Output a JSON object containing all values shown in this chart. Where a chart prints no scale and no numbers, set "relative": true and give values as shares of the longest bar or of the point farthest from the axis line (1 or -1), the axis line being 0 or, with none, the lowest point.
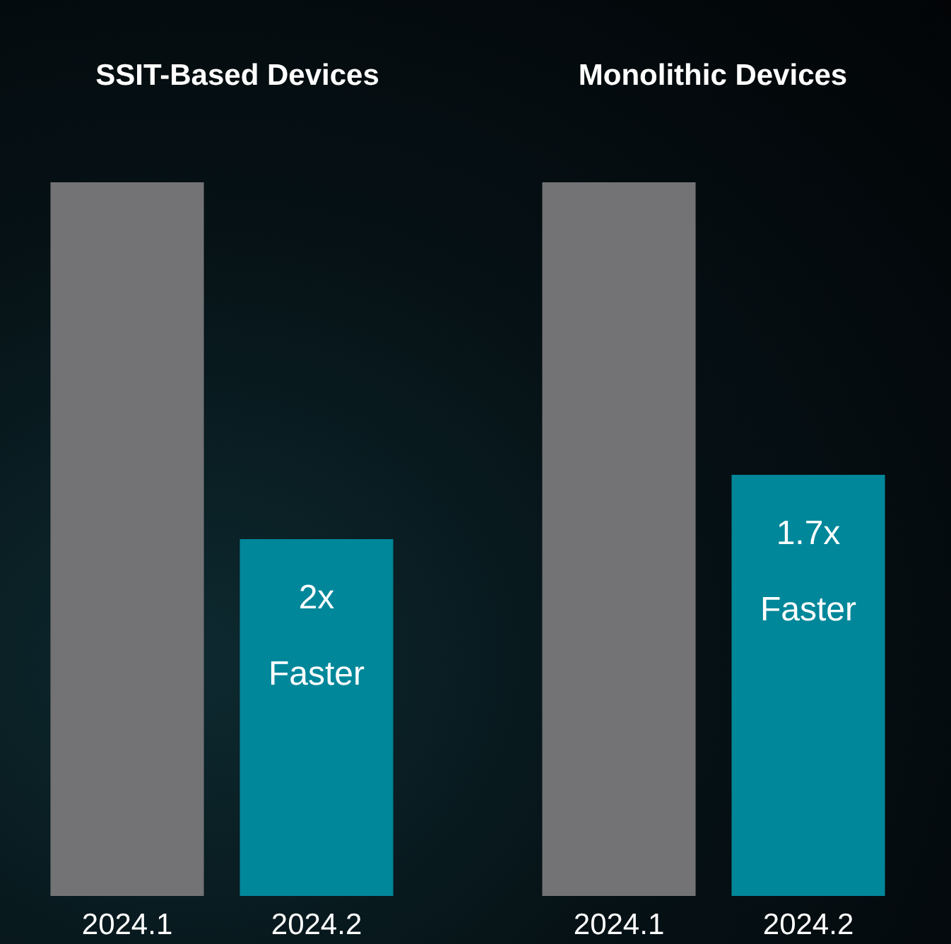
{
  "chart_data": [
    {
      "type": "bar",
      "title": "SSIT-Based Devices",
      "categories": [
        "2024.1",
        "2024.2"
      ],
      "values": [
        1,
        0.5
      ],
      "colors": [
        "#737376",
        "#00879a"
      ],
      "relative": true,
      "annotations": [
        {
          "text": "2x Faster",
          "x": "2024.2",
          "y": 0.5
        }
      ]
    },
    {
      "type": "bar",
      "title": "Monolithic Devices",
      "categories": [
        "2024.1",
        "2024.2"
      ],
      "values": [
        1,
        0.59
      ],
      "colors": [
        "#737376",
        "#00879a"
      ],
      "relative": true,
      "annotations": [
        {
          "text": "1.7x Faster",
          "x": "2024.2",
          "y": 0.59
        }
      ]
    }
  ]
}
